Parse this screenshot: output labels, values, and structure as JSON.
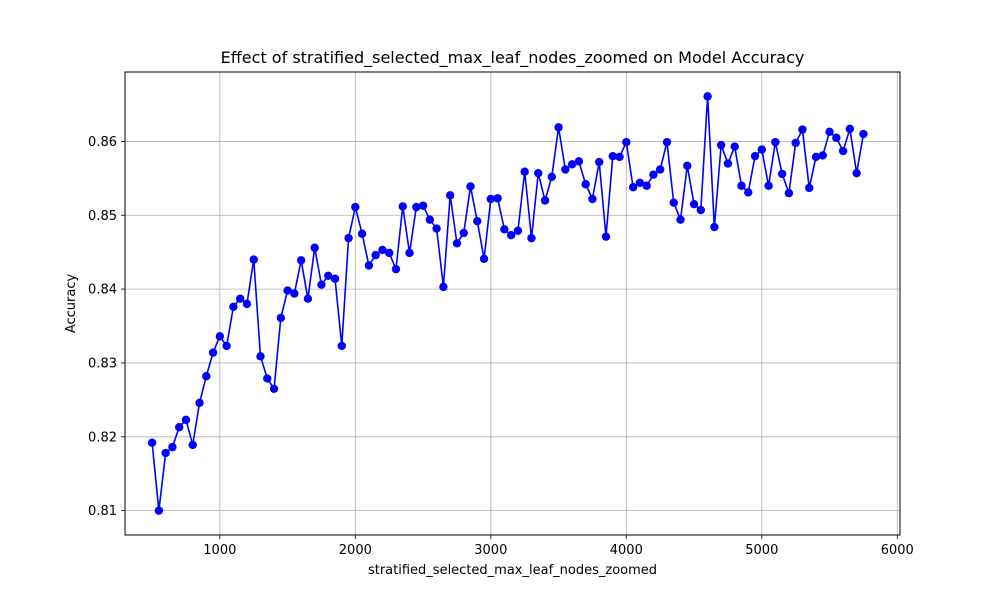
{
  "chart_data": {
    "type": "line",
    "title": "Effect of stratified_selected_max_leaf_nodes_zoomed on Model Accuracy",
    "xlabel": "stratified_selected_max_leaf_nodes_zoomed",
    "ylabel": "Accuracy",
    "xlim": [
      300,
      6020
    ],
    "ylim": [
      0.8067,
      0.8694
    ],
    "xticks": [
      1000,
      2000,
      3000,
      4000,
      5000,
      6000
    ],
    "yticks": [
      0.81,
      0.82,
      0.83,
      0.84,
      0.85,
      0.86
    ],
    "grid": true,
    "marker": "circle",
    "color": "#0000ff",
    "series": [
      {
        "x": [
          500,
          550,
          600,
          650,
          700,
          750,
          800,
          850,
          900,
          950,
          1000,
          1050,
          1100,
          1150,
          1200,
          1250,
          1300,
          1350,
          1400,
          1450,
          1500,
          1550,
          1600,
          1650,
          1700,
          1750,
          1800,
          1850,
          1900,
          1950,
          2000,
          2050,
          2100,
          2150,
          2200,
          2250,
          2300,
          2350,
          2400,
          2450,
          2500,
          2550,
          2600,
          2650,
          2700,
          2750,
          2800,
          2850,
          2900,
          2950,
          3000,
          3050,
          3100,
          3150,
          3200,
          3250,
          3300,
          3350,
          3400,
          3450,
          3500,
          3550,
          3600,
          3650,
          3700,
          3750,
          3800,
          3850,
          3900,
          3950,
          4000,
          4050,
          4100,
          4150,
          4200,
          4250,
          4300,
          4350,
          4400,
          4450,
          4500,
          4550,
          4600,
          4650,
          4700,
          4750,
          4800,
          4850,
          4900,
          4950,
          5000,
          5050,
          5100,
          5150,
          5200,
          5250,
          5300,
          5350,
          5400,
          5450,
          5500,
          5550,
          5600,
          5650,
          5700,
          5750
        ],
        "y": [
          0.8192,
          0.81,
          0.8178,
          0.8186,
          0.8213,
          0.8223,
          0.8189,
          0.8246,
          0.8282,
          0.8314,
          0.8336,
          0.8323,
          0.8376,
          0.8387,
          0.838,
          0.844,
          0.8309,
          0.8279,
          0.8265,
          0.8361,
          0.8398,
          0.8394,
          0.8439,
          0.8387,
          0.8456,
          0.8406,
          0.8418,
          0.8414,
          0.8323,
          0.8469,
          0.8511,
          0.8475,
          0.8432,
          0.8446,
          0.8453,
          0.8449,
          0.8427,
          0.8512,
          0.8449,
          0.8511,
          0.8513,
          0.8494,
          0.8482,
          0.8403,
          0.8527,
          0.8462,
          0.8476,
          0.8539,
          0.8492,
          0.8441,
          0.8522,
          0.8523,
          0.8481,
          0.8473,
          0.8479,
          0.8559,
          0.8469,
          0.8557,
          0.852,
          0.8552,
          0.8619,
          0.8562,
          0.8569,
          0.8573,
          0.8542,
          0.8522,
          0.8572,
          0.8471,
          0.858,
          0.8579,
          0.8599,
          0.8538,
          0.8544,
          0.854,
          0.8555,
          0.8562,
          0.8599,
          0.8517,
          0.8494,
          0.8567,
          0.8515,
          0.8507,
          0.8661,
          0.8484,
          0.8595,
          0.857,
          0.8593,
          0.854,
          0.8531,
          0.858,
          0.8589,
          0.854,
          0.8599,
          0.8556,
          0.853,
          0.8598,
          0.8616,
          0.8537,
          0.8579,
          0.8581,
          0.8613,
          0.8605,
          0.8587,
          0.8617,
          0.8557,
          0.861
        ]
      }
    ]
  }
}
